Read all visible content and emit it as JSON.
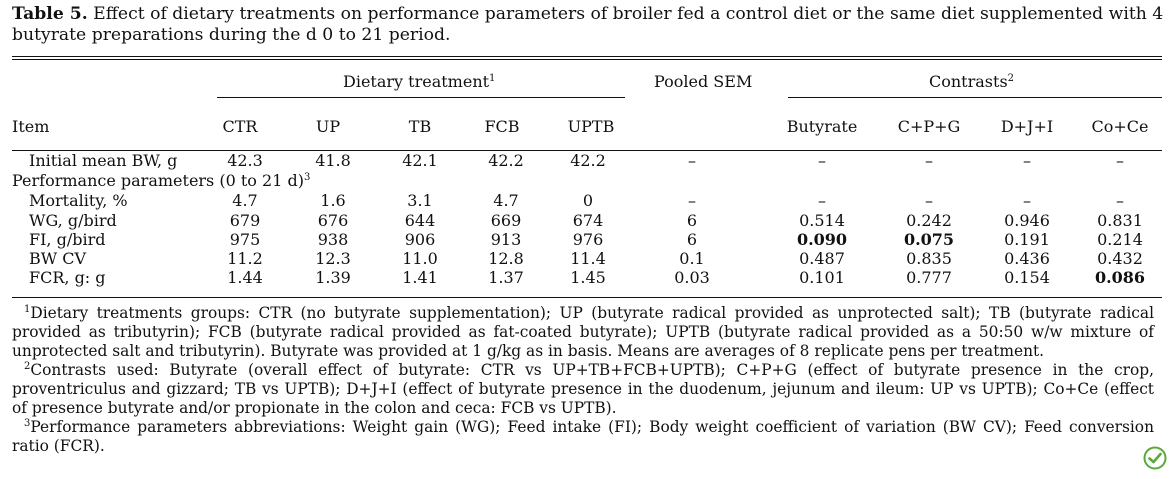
{
  "caption": {
    "label": "Table 5.",
    "text": "Effect of dietary treatments on performance parameters of broiler fed a control diet or the same diet supplemented with 4 butyrate preparations during the d 0 to 21 period."
  },
  "header": {
    "dietary_group": "Dietary treatment",
    "dietary_sup": "1",
    "pooled_sem": "Pooled SEM",
    "contrasts_group": "Contrasts",
    "contrasts_sup": "2",
    "item": "Item",
    "columns": [
      "CTR",
      "UP",
      "TB",
      "FCB",
      "UPTB",
      "Butyrate",
      "C+P+G",
      "D+J+I",
      "Co+Ce"
    ]
  },
  "rows": [
    {
      "label": "Initial mean BW, g",
      "indent": true,
      "values": [
        "42.3",
        "41.8",
        "42.1",
        "42.2",
        "42.2"
      ],
      "sem": "–",
      "contrasts": [
        "–",
        "–",
        "–",
        "–"
      ],
      "bold": []
    },
    {
      "label": "Performance parameters (0 to 21 d)",
      "label_sup": "3",
      "indent": false,
      "section": true
    },
    {
      "label": "Mortality, %",
      "indent": true,
      "values": [
        "4.7",
        "1.6",
        "3.1",
        "4.7",
        "0"
      ],
      "sem": "–",
      "contrasts": [
        "–",
        "–",
        "–",
        "–"
      ],
      "bold": []
    },
    {
      "label": "WG, g/bird",
      "indent": true,
      "values": [
        "679",
        "676",
        "644",
        "669",
        "674"
      ],
      "sem": "6",
      "contrasts": [
        "0.514",
        "0.242",
        "0.946",
        "0.831"
      ],
      "bold": []
    },
    {
      "label": "FI, g/bird",
      "indent": true,
      "values": [
        "975",
        "938",
        "906",
        "913",
        "976"
      ],
      "sem": "6",
      "contrasts": [
        "0.090",
        "0.075",
        "0.191",
        "0.214"
      ],
      "bold": [
        0,
        1
      ]
    },
    {
      "label": "BW CV",
      "indent": true,
      "values": [
        "11.2",
        "12.3",
        "11.0",
        "12.8",
        "11.4"
      ],
      "sem": "0.1",
      "contrasts": [
        "0.487",
        "0.835",
        "0.436",
        "0.432"
      ],
      "bold": []
    },
    {
      "label": "FCR, g: g",
      "indent": true,
      "values": [
        "1.44",
        "1.39",
        "1.41",
        "1.37",
        "1.45"
      ],
      "sem": "0.03",
      "contrasts": [
        "0.101",
        "0.777",
        "0.154",
        "0.086"
      ],
      "bold": [
        3
      ]
    }
  ],
  "footnotes": [
    {
      "sup": "1",
      "text": "Dietary treatments groups: CTR (no butyrate supplementation); UP (butyrate radical provided as unprotected salt); TB (butyrate radical provided as tributyrin); FCB (butyrate radical provided as fat-coated butyrate); UPTB (butyrate radical provided as a 50:50 w/w mixture of unprotected salt and tributyrin). Butyrate was provided at 1 g/kg as in basis. Means are averages of 8 replicate pens per treatment."
    },
    {
      "sup": "2",
      "text": "Contrasts used: Butyrate (overall effect of butyrate: CTR vs UP+TB+FCB+UPTB); C+P+G (effect of butyrate presence in the crop, proventriculus and gizzard; TB vs UPTB); D+J+I (effect of butyrate presence in the duodenum, jejunum and ileum: UP vs UPTB); Co+Ce (effect of presence butyrate and/or propionate in the colon and ceca: FCB vs UPTB)."
    },
    {
      "sup": "3",
      "text": "Performance parameters abbreviations: Weight gain (WG); Feed intake (FI); Body weight coefficient of variation (BW CV); Feed conversion ratio (FCR)."
    }
  ],
  "colors": {
    "text": "#111111",
    "logo_green": "#5aa83a"
  }
}
